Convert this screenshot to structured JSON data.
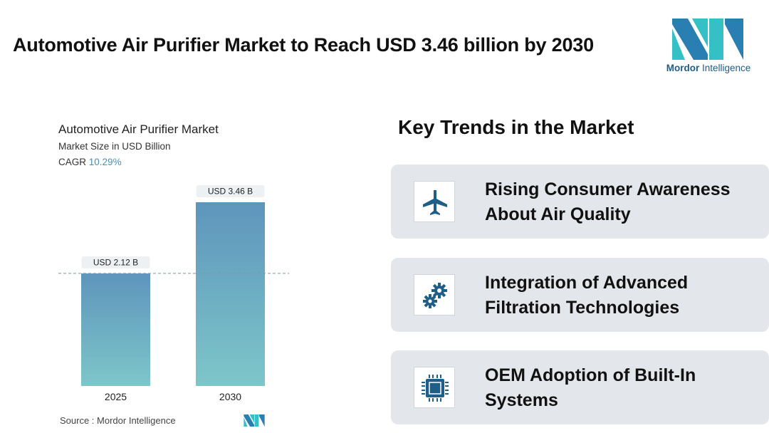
{
  "header": {
    "title": "Automotive Air Purifier Market to Reach USD 3.46 billion by 2030",
    "logo_text_bold": "Mordor",
    "logo_text_rest": " Intelligence"
  },
  "chart_data": {
    "type": "bar",
    "title": "Automotive Air Purifier Market",
    "subtitle": "Market Size in USD Billion",
    "cagr_label": "CAGR",
    "cagr_value": "10.29%",
    "categories": [
      "2025",
      "2030"
    ],
    "values": [
      2.12,
      3.46
    ],
    "data_labels": [
      "USD 2.12 B",
      "USD 3.46 B"
    ],
    "ylim": [
      0,
      3.46
    ],
    "reference_line": 2.12,
    "grid": false,
    "colors": {
      "bar_top": "#5e95bc",
      "bar_bottom": "#7dc6c9",
      "reference_line": "#7a96a8"
    }
  },
  "source": {
    "label": "Source :",
    "name": "Mordor Intelligence"
  },
  "trends": {
    "title": "Key Trends in the Market",
    "items": [
      {
        "label": "Rising Consumer Awareness About Air Quality",
        "icon": "airplane-icon"
      },
      {
        "label": "Integration of Advanced Filtration Technologies",
        "icon": "gears-icon"
      },
      {
        "label": "OEM Adoption of Built-In Systems",
        "icon": "chip-icon"
      }
    ]
  },
  "colors": {
    "accent_dark": "#1f5e86",
    "accent_teal": "#35c0c6",
    "card_bg": "#e3e6ea"
  }
}
